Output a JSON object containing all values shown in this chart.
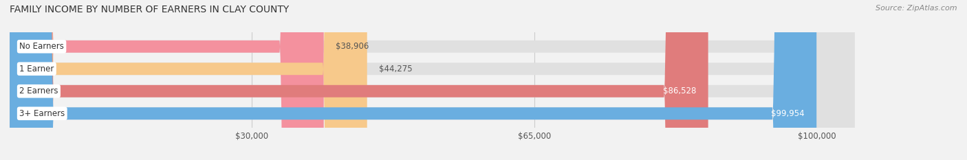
{
  "title": "FAMILY INCOME BY NUMBER OF EARNERS IN CLAY COUNTY",
  "source": "Source: ZipAtlas.com",
  "categories": [
    "No Earners",
    "1 Earner",
    "2 Earners",
    "3+ Earners"
  ],
  "values": [
    38906,
    44275,
    86528,
    99954
  ],
  "bar_colors": [
    "#f4919e",
    "#f7c98b",
    "#e07c7c",
    "#6aaee0"
  ],
  "label_colors": [
    "#333333",
    "#333333",
    "#ffffff",
    "#ffffff"
  ],
  "x_min": 0,
  "x_max": 115000,
  "x_ticks": [
    30000,
    65000,
    100000
  ],
  "x_tick_labels": [
    "$30,000",
    "$65,000",
    "$100,000"
  ],
  "bar_height": 0.55,
  "background_color": "#f2f2f2",
  "bar_bg_color": "#e0e0e0"
}
